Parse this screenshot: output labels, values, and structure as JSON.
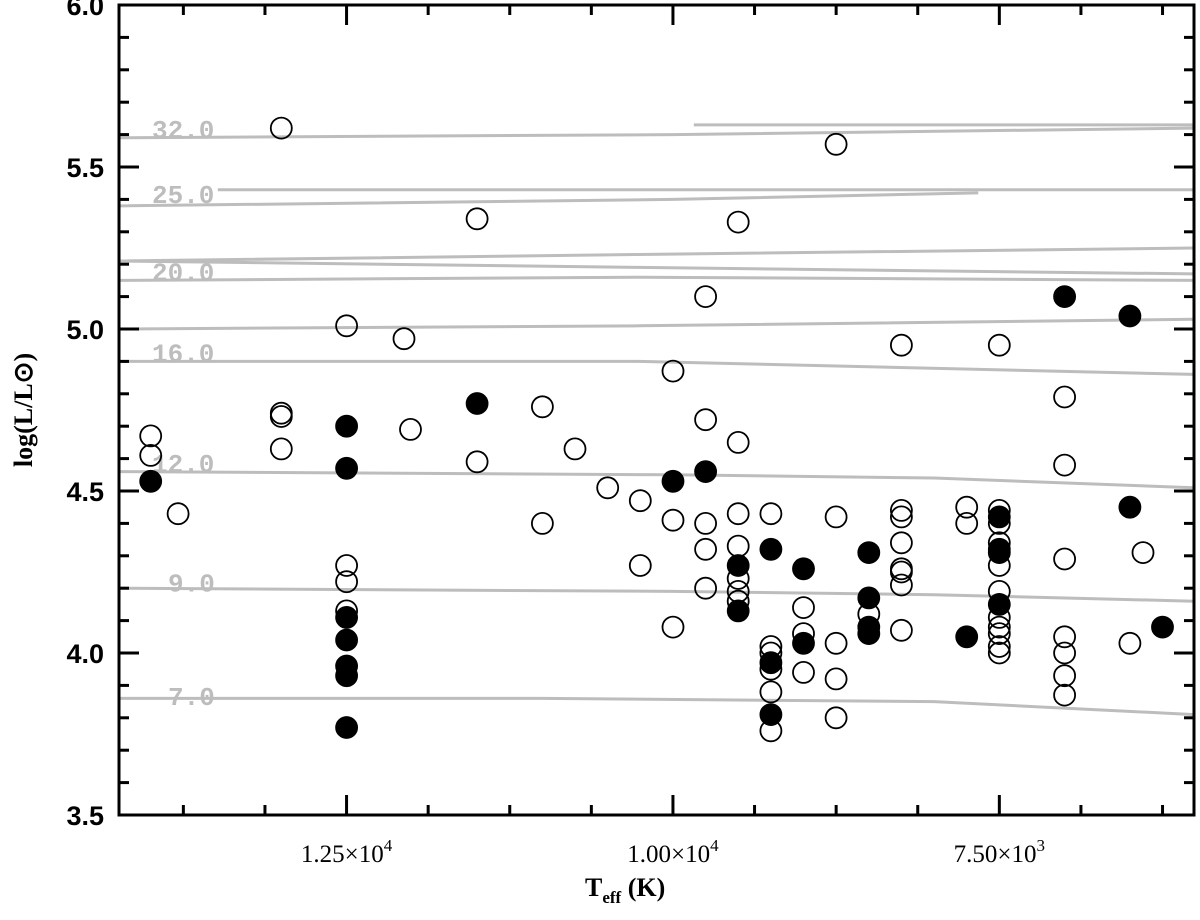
{
  "chart_data": {
    "type": "scatter",
    "title": "",
    "xlabel": "T_eff (K)",
    "ylabel": "log(L/L⊙)",
    "x_reversed": true,
    "xlim": [
      14243,
      6009
    ],
    "ylim": [
      3.5,
      6.0
    ],
    "grid": false,
    "legend": null,
    "x_ticks": {
      "major": [
        12500,
        10000,
        7500
      ],
      "major_labels": [
        "1.25×10⁴",
        "1.00×10⁴",
        "7.50×10³"
      ],
      "minor": [
        13750,
        13125,
        11875,
        11250,
        10625,
        9375,
        8750,
        8125,
        6875,
        6250
      ]
    },
    "y_ticks": {
      "major": [
        3.5,
        4.0,
        4.5,
        5.0,
        5.5,
        6.0
      ],
      "major_labels": [
        "3.5",
        "4.0",
        "4.5",
        "5.0",
        "5.5",
        "6.0"
      ],
      "minor": [
        3.6,
        3.7,
        3.8,
        3.9,
        4.1,
        4.2,
        4.3,
        4.4,
        4.6,
        4.7,
        4.8,
        4.9,
        5.1,
        5.2,
        5.3,
        5.4,
        5.6,
        5.7,
        5.8,
        5.9
      ]
    },
    "series": [
      {
        "name": "open circles",
        "marker": "open-circle",
        "color": "#000000",
        "points": [
          [
            14000,
            4.67
          ],
          [
            14000,
            4.61
          ],
          [
            13790,
            4.43
          ],
          [
            13000,
            4.74
          ],
          [
            13000,
            4.73
          ],
          [
            13000,
            4.63
          ],
          [
            13000,
            5.62
          ],
          [
            12500,
            4.27
          ],
          [
            12500,
            4.22
          ],
          [
            12500,
            4.13
          ],
          [
            12500,
            5.01
          ],
          [
            12010,
            4.69
          ],
          [
            12060,
            4.97
          ],
          [
            11500,
            4.59
          ],
          [
            11500,
            5.34
          ],
          [
            11000,
            4.76
          ],
          [
            10750,
            4.63
          ],
          [
            11000,
            4.4
          ],
          [
            10500,
            4.51
          ],
          [
            10250,
            4.47
          ],
          [
            10250,
            4.27
          ],
          [
            10000,
            4.41
          ],
          [
            10000,
            4.08
          ],
          [
            10000,
            4.87
          ],
          [
            9750,
            4.72
          ],
          [
            9750,
            4.4
          ],
          [
            9750,
            4.32
          ],
          [
            9750,
            4.2
          ],
          [
            9750,
            5.1
          ],
          [
            9500,
            4.65
          ],
          [
            9500,
            4.43
          ],
          [
            9500,
            4.33
          ],
          [
            9500,
            4.23
          ],
          [
            9500,
            4.19
          ],
          [
            9500,
            4.16
          ],
          [
            9500,
            5.33
          ],
          [
            9250,
            4.43
          ],
          [
            9250,
            4.02
          ],
          [
            9250,
            4.0
          ],
          [
            9250,
            3.95
          ],
          [
            9250,
            3.88
          ],
          [
            9250,
            3.76
          ],
          [
            9000,
            4.14
          ],
          [
            9000,
            4.06
          ],
          [
            9000,
            3.94
          ],
          [
            8750,
            4.42
          ],
          [
            8750,
            4.03
          ],
          [
            8750,
            3.92
          ],
          [
            8750,
            3.8
          ],
          [
            8750,
            5.57
          ],
          [
            8500,
            4.12
          ],
          [
            8250,
            4.44
          ],
          [
            8250,
            4.42
          ],
          [
            8250,
            4.34
          ],
          [
            8250,
            4.26
          ],
          [
            8250,
            4.25
          ],
          [
            8250,
            4.21
          ],
          [
            8250,
            4.07
          ],
          [
            8250,
            4.95
          ],
          [
            7750,
            4.45
          ],
          [
            7750,
            4.4
          ],
          [
            7500,
            4.44
          ],
          [
            7500,
            4.4
          ],
          [
            7500,
            4.34
          ],
          [
            7500,
            4.27
          ],
          [
            7500,
            4.19
          ],
          [
            7500,
            4.11
          ],
          [
            7500,
            4.08
          ],
          [
            7500,
            4.06
          ],
          [
            7500,
            4.02
          ],
          [
            7500,
            4.0
          ],
          [
            7500,
            4.95
          ],
          [
            7000,
            4.79
          ],
          [
            7000,
            4.58
          ],
          [
            7000,
            4.29
          ],
          [
            7000,
            4.05
          ],
          [
            7000,
            4.0
          ],
          [
            7000,
            3.93
          ],
          [
            7000,
            3.87
          ],
          [
            6500,
            4.03
          ],
          [
            6400,
            4.31
          ]
        ]
      },
      {
        "name": "filled circles",
        "marker": "filled-circle",
        "color": "#000000",
        "points": [
          [
            14000,
            4.53
          ],
          [
            12500,
            4.7
          ],
          [
            12500,
            4.57
          ],
          [
            12500,
            4.11
          ],
          [
            12500,
            4.04
          ],
          [
            12500,
            3.96
          ],
          [
            12500,
            3.93
          ],
          [
            12500,
            3.77
          ],
          [
            11500,
            4.77
          ],
          [
            10000,
            4.53
          ],
          [
            9750,
            4.56
          ],
          [
            9500,
            4.27
          ],
          [
            9500,
            4.13
          ],
          [
            9250,
            4.32
          ],
          [
            9250,
            3.97
          ],
          [
            9250,
            3.81
          ],
          [
            9000,
            4.26
          ],
          [
            9000,
            4.03
          ],
          [
            8500,
            4.31
          ],
          [
            8500,
            4.17
          ],
          [
            8500,
            4.08
          ],
          [
            8500,
            4.06
          ],
          [
            7750,
            4.05
          ],
          [
            7500,
            4.42
          ],
          [
            7500,
            4.32
          ],
          [
            7500,
            4.31
          ],
          [
            7500,
            4.15
          ],
          [
            7000,
            5.1
          ],
          [
            6500,
            5.04
          ],
          [
            6500,
            4.45
          ],
          [
            6250,
            4.08
          ]
        ]
      }
    ],
    "tracks": {
      "color": "#bdbdbd",
      "lines": [
        {
          "mass": "32.0",
          "label": "32.0",
          "points": [
            [
              14243,
              5.59
            ],
            [
              10000,
              5.6
            ],
            [
              6009,
              5.62
            ]
          ]
        },
        {
          "mass": "32.0",
          "label": "",
          "points": [
            [
              9840,
              5.63
            ],
            [
              6009,
              5.63
            ]
          ]
        },
        {
          "mass": "25.0",
          "label": "",
          "points": [
            [
              13486,
              5.43
            ],
            [
              10000,
              5.43
            ],
            [
              6009,
              5.43
            ]
          ]
        },
        {
          "mass": "25.0",
          "label": "25.0",
          "points": [
            [
              14243,
              5.38
            ],
            [
              10000,
              5.4
            ],
            [
              7661,
              5.42
            ]
          ]
        },
        {
          "mass": "20.0",
          "label": "",
          "points": [
            [
              14243,
              5.21
            ],
            [
              10260,
              5.23
            ],
            [
              6009,
              5.25
            ]
          ]
        },
        {
          "mass": "20.0",
          "label": "",
          "points": [
            [
              14243,
              5.21
            ],
            [
              10260,
              5.19
            ],
            [
              6009,
              5.17
            ]
          ]
        },
        {
          "mass": "20.0",
          "label": "20.0",
          "points": [
            [
              14243,
              5.15
            ],
            [
              10260,
              5.16
            ],
            [
              6009,
              5.15
            ]
          ]
        },
        {
          "mass": "16.0",
          "label": "",
          "points": [
            [
              14243,
              5.0
            ],
            [
              10260,
              5.01
            ],
            [
              6009,
              5.03
            ]
          ]
        },
        {
          "mass": "16.0",
          "label": "16.0",
          "points": [
            [
              14243,
              4.9
            ],
            [
              10260,
              4.9
            ],
            [
              6009,
              4.86
            ]
          ]
        },
        {
          "mass": "12.0",
          "label": "12.0",
          "points": [
            [
              14243,
              4.56
            ],
            [
              10000,
              4.55
            ],
            [
              8000,
              4.54
            ],
            [
              6009,
              4.51
            ]
          ]
        },
        {
          "mass": "9.0",
          "label": "9.0",
          "points": [
            [
              14243,
              4.2
            ],
            [
              10000,
              4.19
            ],
            [
              8000,
              4.18
            ],
            [
              6009,
              4.16
            ]
          ]
        },
        {
          "mass": "7.0",
          "label": "7.0",
          "points": [
            [
              14243,
              3.86
            ],
            [
              11000,
              3.86
            ],
            [
              8000,
              3.85
            ],
            [
              6009,
              3.81
            ]
          ]
        }
      ],
      "labels": [
        {
          "text": "32.0",
          "logL": 5.62
        },
        {
          "text": "25.0",
          "logL": 5.42
        },
        {
          "text": "20.0",
          "logL": 5.18
        },
        {
          "text": "16.0",
          "logL": 4.93
        },
        {
          "text": "12.0",
          "logL": 4.59
        },
        {
          "text": "9.0",
          "logL": 4.22
        },
        {
          "text": "7.0",
          "logL": 3.87
        }
      ]
    }
  },
  "axes": {
    "xlabel_main": "T",
    "xlabel_sub": "eff",
    "xlabel_unit": " (K)",
    "ylabel": "log(L/L⊙)"
  }
}
